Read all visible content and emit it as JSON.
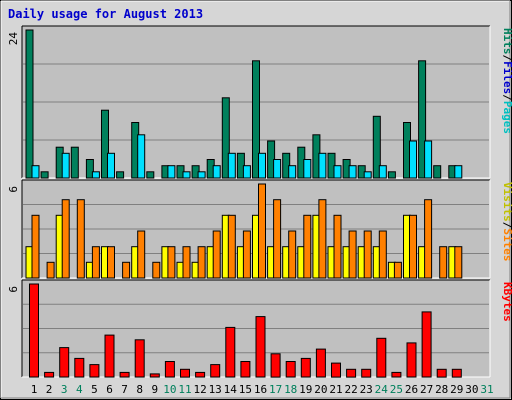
{
  "chart_data": {
    "type": "bar",
    "title": "Daily usage for August 2013",
    "days": [
      "1",
      "2",
      "3",
      "4",
      "5",
      "6",
      "7",
      "8",
      "9",
      "10",
      "11",
      "12",
      "13",
      "14",
      "15",
      "16",
      "17",
      "18",
      "19",
      "20",
      "21",
      "22",
      "23",
      "24",
      "25",
      "26",
      "27",
      "28",
      "29",
      "30",
      "31"
    ],
    "weekend_days": [
      "3",
      "4",
      "10",
      "11",
      "17",
      "18",
      "24",
      "25",
      "31"
    ],
    "colors": {
      "title": "#0000cc",
      "hits": "#00805c",
      "files": "#00c0ff",
      "pages": "#00e0e0",
      "visits": "#ffff00",
      "sites": "#ff8000",
      "kbytes": "#ff0000",
      "day_label": "#000000",
      "weekend_label": "#00805c",
      "panel_bg": "#c0c0c0",
      "frame_bg": "#d6d6d6"
    },
    "panels": [
      {
        "id": "hits_files_pages",
        "ymax_label": "24",
        "ymax": 24,
        "legend": [
          {
            "text": "Hits",
            "color": "#00805c"
          },
          {
            "text": "/",
            "color": "#000000"
          },
          {
            "text": "Files",
            "color": "#0000cc"
          },
          {
            "text": "/",
            "color": "#000000"
          },
          {
            "text": "Pages",
            "color": "#00c0c0"
          }
        ],
        "series": [
          {
            "name": "Hits",
            "color": "#00805c",
            "values": [
              24,
              1,
              5,
              5,
              3,
              11,
              1,
              9,
              1,
              2,
              2,
              2,
              3,
              13,
              4,
              19,
              6,
              4,
              5,
              7,
              4,
              3,
              2,
              10,
              1,
              9,
              19,
              2,
              2,
              0,
              0
            ]
          },
          {
            "name": "Files",
            "color": "#00e0ff",
            "values": [
              2,
              0,
              4,
              0,
              1,
              4,
              0,
              7,
              0,
              2,
              1,
              1,
              2,
              4,
              2,
              4,
              3,
              2,
              3,
              4,
              2,
              2,
              1,
              2,
              0,
              6,
              6,
              0,
              2,
              0,
              0
            ]
          }
        ]
      },
      {
        "id": "visits_sites",
        "ymax_label": "6",
        "ymax": 6,
        "legend": [
          {
            "text": "Visits",
            "color": "#c0c000"
          },
          {
            "text": "/",
            "color": "#000000"
          },
          {
            "text": "Sites",
            "color": "#ff8000"
          }
        ],
        "series": [
          {
            "name": "Visits",
            "color": "#ffff00",
            "values": [
              2,
              0,
              4,
              0,
              1,
              2,
              0,
              2,
              0,
              2,
              1,
              1,
              2,
              4,
              2,
              4,
              2,
              2,
              2,
              4,
              2,
              2,
              2,
              2,
              1,
              4,
              2,
              0,
              2,
              0,
              0
            ]
          },
          {
            "name": "Sites",
            "color": "#ff8000",
            "values": [
              4,
              1,
              5,
              5,
              2,
              2,
              1,
              3,
              1,
              2,
              2,
              2,
              3,
              4,
              3,
              6,
              5,
              3,
              4,
              5,
              4,
              3,
              3,
              3,
              1,
              4,
              5,
              2,
              2,
              0,
              0
            ]
          }
        ]
      },
      {
        "id": "kbytes",
        "ymax_label": "6",
        "ymax": 6,
        "legend": [
          {
            "text": "KBytes",
            "color": "#ff0000"
          }
        ],
        "series": [
          {
            "name": "KBytes",
            "color": "#ff0000",
            "values": [
              6.0,
              0.3,
              1.9,
              1.2,
              0.8,
              2.7,
              0.3,
              2.4,
              0.2,
              1.0,
              0.5,
              0.3,
              0.8,
              3.2,
              1.0,
              3.9,
              1.5,
              1.0,
              1.2,
              1.8,
              0.9,
              0.5,
              0.5,
              2.5,
              0.3,
              2.2,
              4.2,
              0.5,
              0.5,
              0,
              0
            ]
          }
        ]
      }
    ]
  }
}
